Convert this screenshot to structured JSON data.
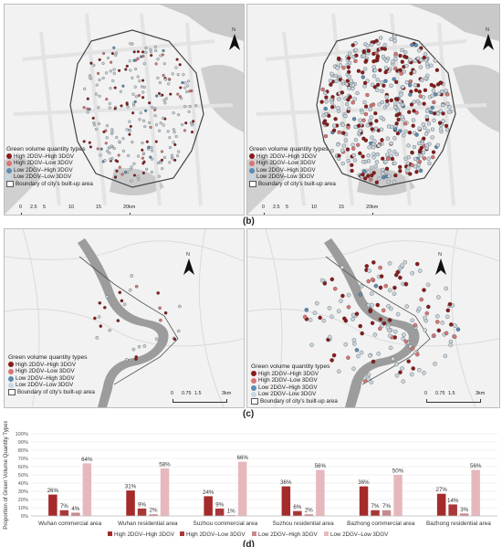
{
  "panel_labels": {
    "b": "(b)",
    "c": "(c)",
    "d": "(d)"
  },
  "legend": {
    "title": "Green volume quantity types",
    "items": [
      {
        "label": "High 2DGV–High 3DGV",
        "color": "#8b1a1a"
      },
      {
        "label": "High 2DGV–Low 3DGV",
        "color": "#d97575"
      },
      {
        "label": "Low 2DGV–High 3DGV",
        "color": "#5a8db5"
      },
      {
        "label": "Low 2DGV–Low 3DGV",
        "color": "#c8d6e0"
      }
    ],
    "boundary": "Boundary of city's built-up area"
  },
  "scale_b": {
    "ticks": [
      "0",
      "2.5",
      "5",
      "10",
      "15",
      "20km"
    ]
  },
  "scale_c": {
    "ticks": [
      "0",
      "0.75",
      "1.5",
      "3km"
    ]
  },
  "north_label": "N",
  "chart_data": {
    "type": "bar",
    "ylabel": "Proportion of Green Volume Quantity Types",
    "ylim": [
      0,
      100
    ],
    "yticks": [
      "100%",
      "90%",
      "80%",
      "70%",
      "60%",
      "50%",
      "40%",
      "30%",
      "20%",
      "10%",
      "0%"
    ],
    "grid": true,
    "legend_position": "bottom",
    "categories": [
      "Wuhan commercial area",
      "Wuhan residential area",
      "Suzhou commercial area",
      "Suzhou residential area",
      "Bazhong commercial area",
      "Bazhong residential area"
    ],
    "series": [
      {
        "name": "High 2DGV–High 3DGV",
        "color": "#a52a2a",
        "values": [
          26,
          31,
          24,
          36,
          36,
          27
        ],
        "labels": [
          "26%",
          "31%",
          "24%",
          "36%",
          "36%",
          "27%"
        ]
      },
      {
        "name": "High 2DGV–Low 3DGV",
        "color": "#a83838",
        "values": [
          7,
          9,
          9,
          6,
          7,
          14
        ],
        "labels": [
          "7%",
          "9%",
          "9%",
          "6%",
          "7%",
          "14%"
        ]
      },
      {
        "name": "Low 2DGV–High 3DGV",
        "color": "#c98a8f",
        "values": [
          4,
          2,
          1,
          2,
          7,
          3
        ],
        "labels": [
          "4%",
          "2%",
          "1%",
          "2%",
          "7%",
          "3%"
        ]
      },
      {
        "name": "Low 2DGV–Low 3DGV",
        "color": "#e6b8bd",
        "values": [
          64,
          58,
          66,
          56,
          50,
          56
        ],
        "labels": [
          "64%",
          "58%",
          "66%",
          "56%",
          "50%",
          "56%"
        ]
      }
    ]
  }
}
